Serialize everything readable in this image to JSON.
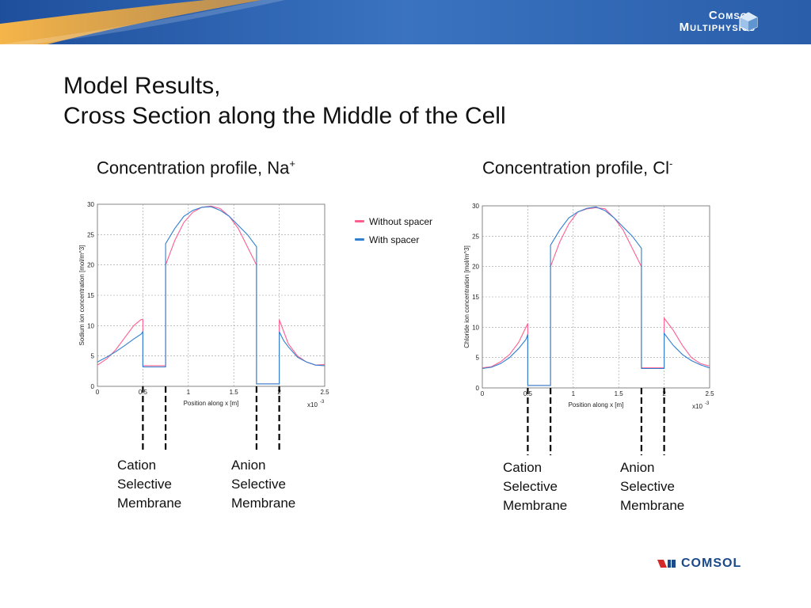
{
  "header": {
    "logo_line1": "Comsol",
    "logo_line2": "Multiphysics",
    "colors": {
      "banner": "#2f66b3",
      "accent": "#f0a030"
    }
  },
  "title": {
    "line1": "Model Results,",
    "line2": "Cross Section along the Middle of the Cell"
  },
  "panels": [
    {
      "subtitle": "Concentration profile, Na",
      "superscript": "+"
    },
    {
      "subtitle": "Concentration profile, Cl",
      "superscript": "-"
    }
  ],
  "legend": [
    {
      "label": "Without spacer",
      "color": "#ff5f8f"
    },
    {
      "label": "With spacer",
      "color": "#2f7fd0"
    }
  ],
  "membrane_labels": {
    "cation": [
      "Cation",
      "Selective",
      "Membrane"
    ],
    "anion": [
      "Anion",
      "Selective",
      "Membrane"
    ]
  },
  "footer": {
    "logo": "COMSOL"
  },
  "chart_data": [
    {
      "type": "line",
      "title": "",
      "xlabel": "Position along x [m]",
      "ylabel": "Sodium ion concentration [mol/m^3]",
      "x_multiplier": "x10",
      "x_multiplier_exp": "-3",
      "xlim": [
        0,
        2.5
      ],
      "ylim": [
        0,
        30
      ],
      "xticks": [
        "0",
        "0.5",
        "1",
        "1.5",
        "2",
        "2.5"
      ],
      "yticks": [
        "0",
        "5",
        "10",
        "15",
        "20",
        "25",
        "30"
      ],
      "grid": true,
      "membrane_positions": [
        0.5,
        0.75,
        1.75,
        2.0
      ],
      "series": [
        {
          "name": "Without spacer",
          "color": "#ff5f8f",
          "x": [
            0,
            0.1,
            0.2,
            0.3,
            0.4,
            0.48,
            0.5,
            0.5,
            0.75,
            0.75,
            0.85,
            0.95,
            1.05,
            1.15,
            1.25,
            1.35,
            1.45,
            1.55,
            1.65,
            1.75,
            1.75,
            2.0,
            2.0,
            2.05,
            2.1,
            2.2,
            2.3,
            2.4,
            2.5
          ],
          "values": [
            3.5,
            4.5,
            6.0,
            8.0,
            10.0,
            11.0,
            11.0,
            3.4,
            3.4,
            20.0,
            24.0,
            27.0,
            28.7,
            29.5,
            29.7,
            29.3,
            28.0,
            26.0,
            23.0,
            20.0,
            0.4,
            0.4,
            11.0,
            9.0,
            7.0,
            5.0,
            4.0,
            3.5,
            3.6
          ]
        },
        {
          "name": "With spacer",
          "color": "#2f7fd0",
          "x": [
            0,
            0.1,
            0.2,
            0.3,
            0.4,
            0.48,
            0.5,
            0.5,
            0.75,
            0.75,
            0.85,
            0.95,
            1.05,
            1.15,
            1.25,
            1.35,
            1.45,
            1.55,
            1.65,
            1.75,
            1.75,
            2.0,
            2.0,
            2.05,
            2.1,
            2.2,
            2.3,
            2.4,
            2.5
          ],
          "values": [
            4.0,
            4.8,
            5.7,
            6.7,
            7.8,
            8.6,
            9.0,
            3.2,
            3.2,
            23.5,
            26.0,
            28.0,
            29.0,
            29.5,
            29.6,
            29.0,
            28.0,
            26.5,
            25.0,
            23.0,
            0.4,
            0.4,
            9.0,
            7.5,
            6.5,
            4.8,
            4.0,
            3.5,
            3.4
          ]
        }
      ]
    },
    {
      "type": "line",
      "title": "",
      "xlabel": "Position along x [m]",
      "ylabel": "Chloride ion concentration [mol/m^3]",
      "x_multiplier": "x10",
      "x_multiplier_exp": "-3",
      "xlim": [
        0,
        2.5
      ],
      "ylim": [
        0,
        30
      ],
      "xticks": [
        "0",
        "0.5",
        "1",
        "1.5",
        "2",
        "2.5"
      ],
      "yticks": [
        "0",
        "5",
        "10",
        "15",
        "20",
        "25",
        "30"
      ],
      "grid": true,
      "membrane_positions": [
        0.5,
        0.75,
        1.75,
        2.0
      ],
      "series": [
        {
          "name": "Without spacer",
          "color": "#ff5f8f",
          "x": [
            0,
            0.1,
            0.2,
            0.3,
            0.4,
            0.48,
            0.5,
            0.5,
            0.75,
            0.75,
            0.85,
            0.95,
            1.05,
            1.15,
            1.25,
            1.35,
            1.45,
            1.55,
            1.65,
            1.75,
            1.75,
            2.0,
            2.0,
            2.05,
            2.1,
            2.2,
            2.3,
            2.4,
            2.5
          ],
          "values": [
            3.3,
            3.5,
            4.3,
            5.5,
            7.5,
            10.0,
            10.6,
            0.4,
            0.4,
            20.0,
            24.0,
            27.0,
            29.0,
            29.5,
            29.7,
            29.5,
            28.0,
            26.0,
            23.0,
            20.0,
            3.3,
            3.3,
            11.5,
            10.5,
            9.5,
            7.0,
            5.0,
            4.0,
            3.6
          ]
        },
        {
          "name": "With spacer",
          "color": "#2f7fd0",
          "x": [
            0,
            0.1,
            0.2,
            0.3,
            0.4,
            0.48,
            0.5,
            0.5,
            0.75,
            0.75,
            0.85,
            0.95,
            1.05,
            1.15,
            1.25,
            1.35,
            1.45,
            1.55,
            1.65,
            1.75,
            1.75,
            2.0,
            2.0,
            2.05,
            2.1,
            2.2,
            2.3,
            2.4,
            2.5
          ],
          "values": [
            3.2,
            3.4,
            4.0,
            5.0,
            6.5,
            8.0,
            8.8,
            0.4,
            0.4,
            23.5,
            26.0,
            28.0,
            29.0,
            29.6,
            29.8,
            29.2,
            28.0,
            26.5,
            25.0,
            23.0,
            3.2,
            3.2,
            9.0,
            8.0,
            7.0,
            5.5,
            4.5,
            3.8,
            3.3
          ]
        }
      ]
    }
  ]
}
